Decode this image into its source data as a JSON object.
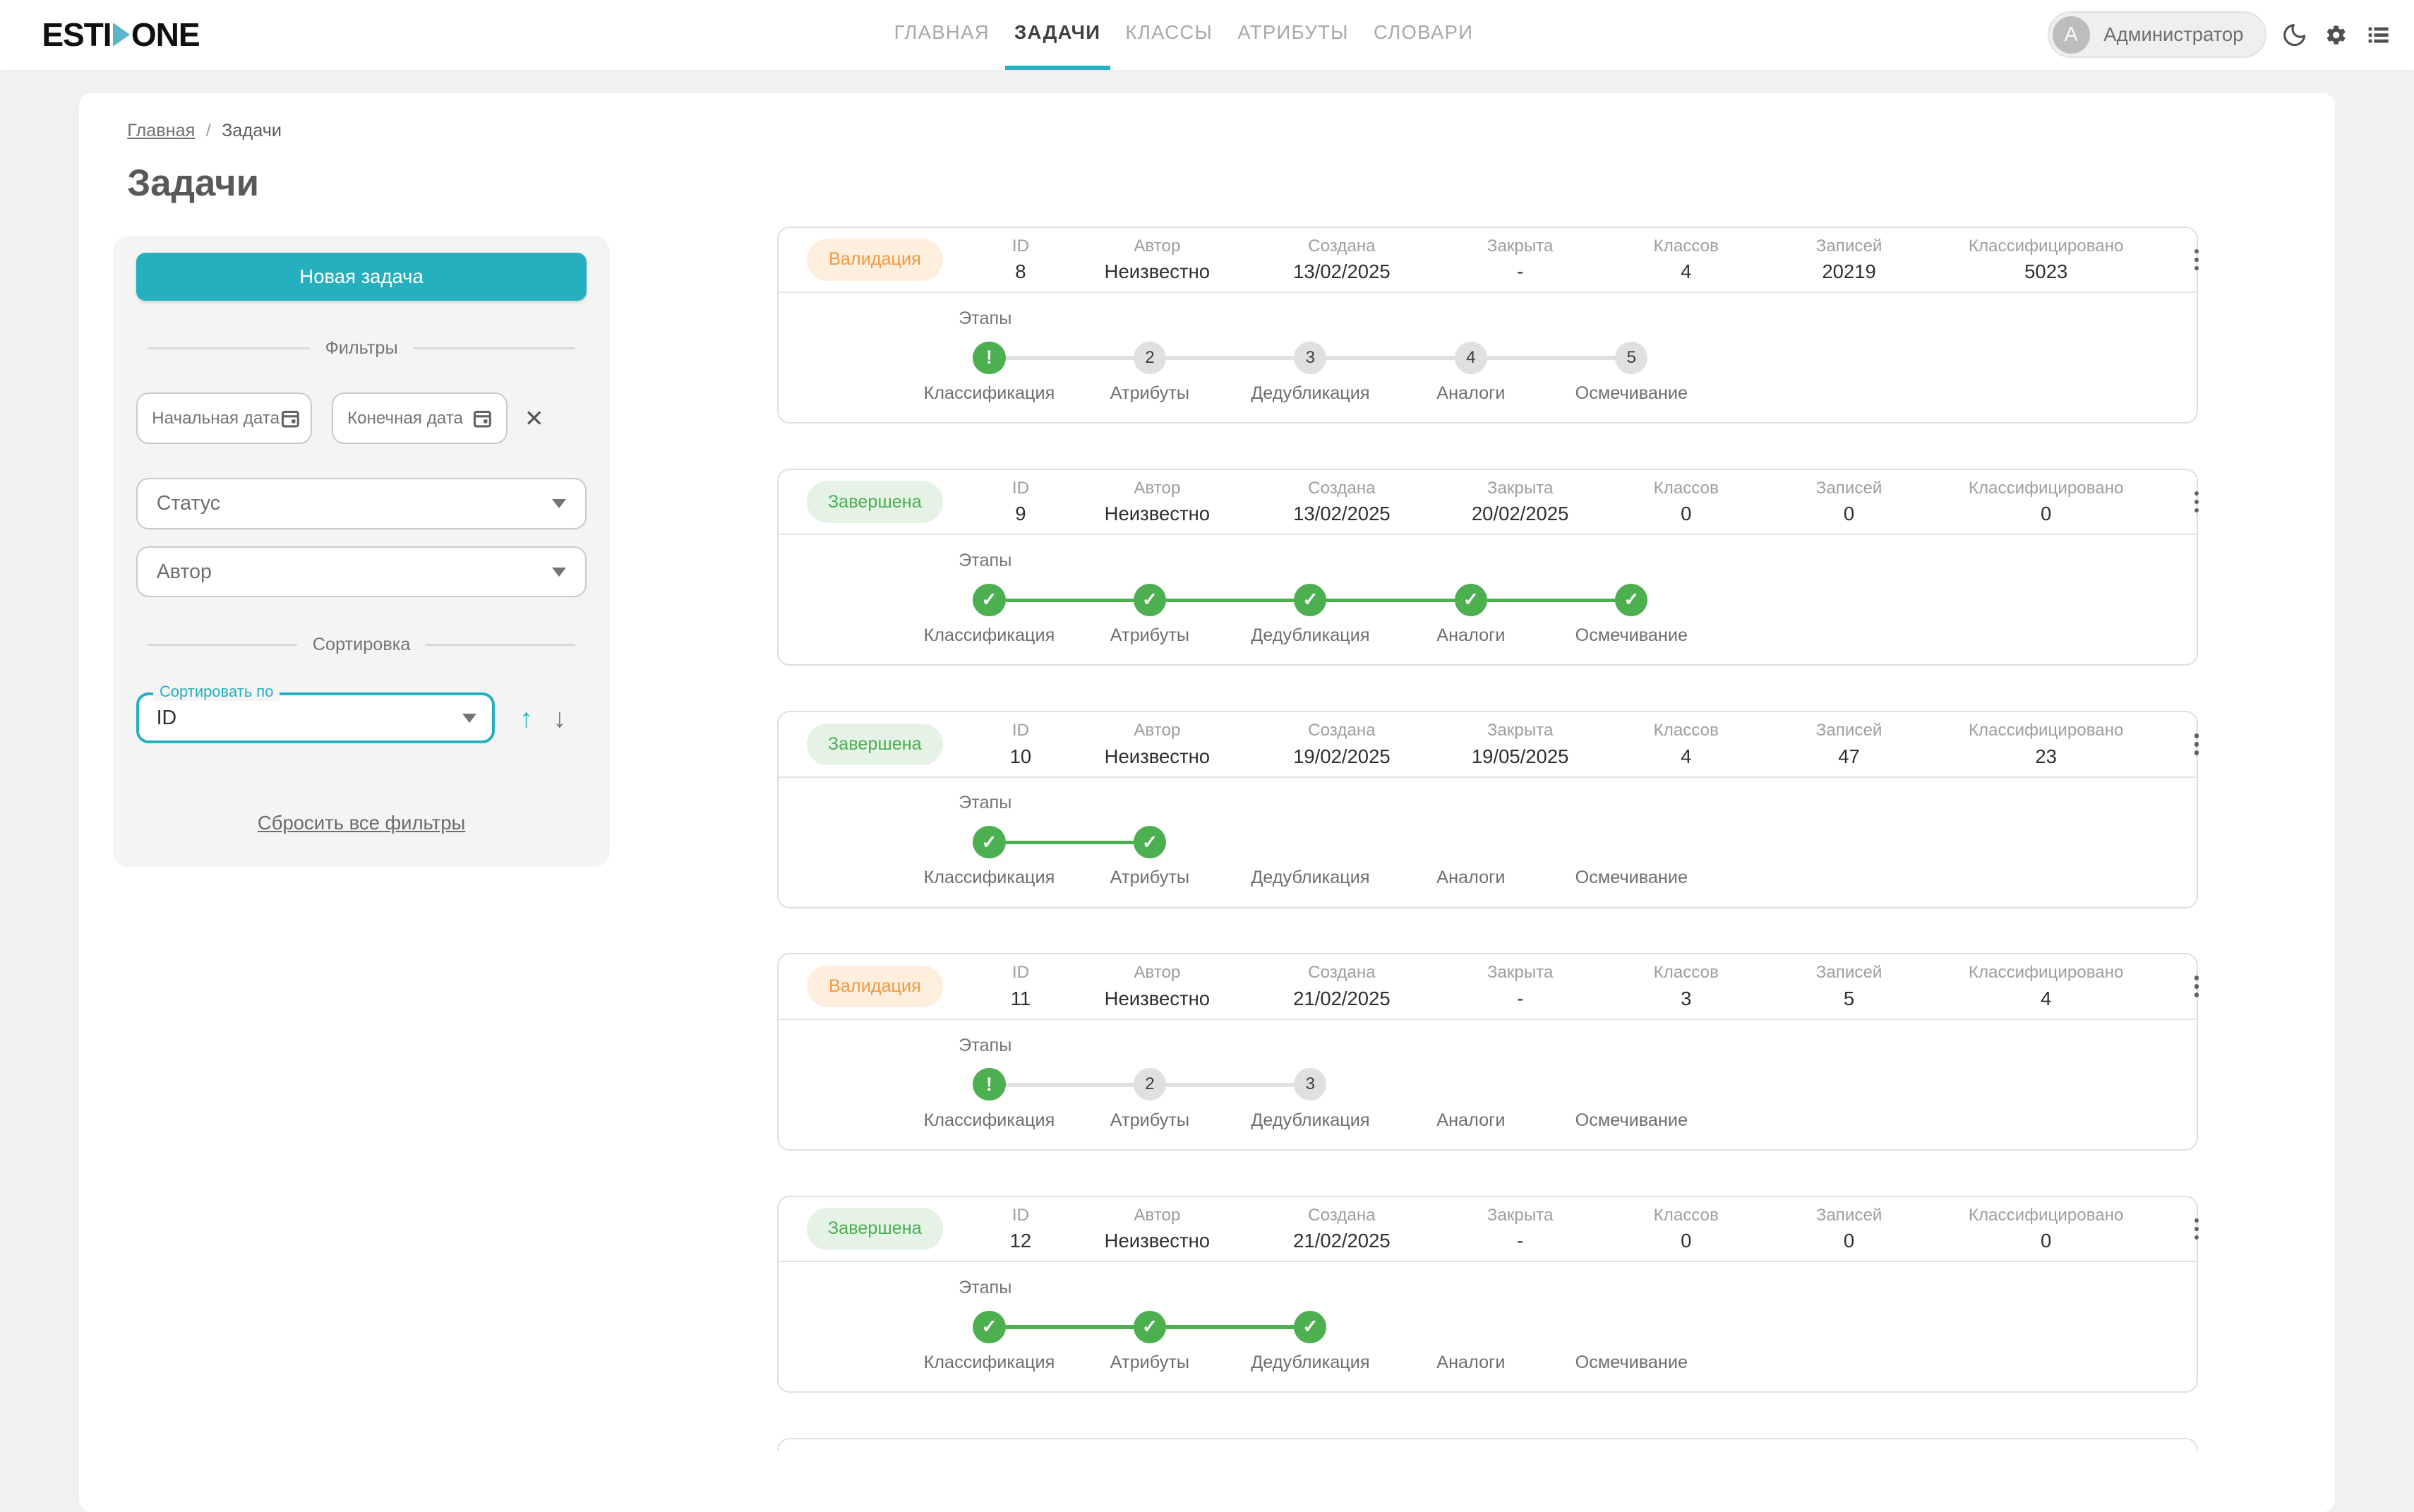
{
  "header": {
    "logo": {
      "part1": "ESTI",
      "part2": "ONE"
    },
    "nav": [
      {
        "name": "glavnaya",
        "label": "ГЛАВНАЯ",
        "active": false
      },
      {
        "name": "zadachi",
        "label": "ЗАДАЧИ",
        "active": true
      },
      {
        "name": "klassy",
        "label": "КЛАССЫ",
        "active": false
      },
      {
        "name": "atributy",
        "label": "АТРИБУТЫ",
        "active": false
      },
      {
        "name": "slovari",
        "label": "СЛОВАРИ",
        "active": false
      }
    ],
    "user": {
      "initial": "A",
      "name": "Администратор"
    },
    "icons": [
      "moon-icon",
      "settings-icon",
      "list-icon"
    ]
  },
  "breadcrumb": {
    "items": [
      {
        "label": "Главная"
      },
      {
        "label": "Задачи"
      }
    ],
    "separator": "/"
  },
  "page_title": "Задачи",
  "sidebar": {
    "new_task_button": "Новая задача",
    "filters_divider": "Фильтры",
    "start_date_placeholder": "Начальная дата",
    "end_date_placeholder": "Конечная дата",
    "clear_dates_icon": "✕",
    "status_placeholder": "Статус",
    "author_placeholder": "Автор",
    "sort_divider": "Сортировка",
    "sort_label": "Сортировать по",
    "sort_value": "ID",
    "sort_asc_icon": "↑",
    "sort_desc_icon": "↓",
    "reset_link": "Сбросить все фильтры"
  },
  "tasks": {
    "columns": [
      "ID",
      "Автор",
      "Создана",
      "Закрыта",
      "Классов",
      "Записей",
      "Классифицировано"
    ],
    "stages_label": "Этапы",
    "stage_names": [
      "Классификация",
      "Атрибуты",
      "Дедубликация",
      "Аналоги",
      "Осмечивание"
    ],
    "glyphs": {
      "done": "✓",
      "current": "!"
    },
    "cards": [
      {
        "status": "Валидация",
        "status_type": "validation",
        "values": [
          "8",
          "Неизвестно",
          "13/02/2025",
          "-",
          "4",
          "20219",
          "5023"
        ],
        "steps": [
          {
            "state": "current"
          },
          {
            "state": "pending",
            "num": "2"
          },
          {
            "state": "pending",
            "num": "3"
          },
          {
            "state": "pending",
            "num": "4"
          },
          {
            "state": "pending",
            "num": "5"
          }
        ]
      },
      {
        "status": "Завершена",
        "status_type": "done",
        "values": [
          "9",
          "Неизвестно",
          "13/02/2025",
          "20/02/2025",
          "0",
          "0",
          "0"
        ],
        "steps": [
          {
            "state": "done"
          },
          {
            "state": "done"
          },
          {
            "state": "done"
          },
          {
            "state": "done"
          },
          {
            "state": "done"
          }
        ]
      },
      {
        "status": "Завершена",
        "status_type": "done",
        "values": [
          "10",
          "Неизвестно",
          "19/02/2025",
          "19/05/2025",
          "4",
          "47",
          "23"
        ],
        "steps": [
          {
            "state": "done"
          },
          {
            "state": "done"
          },
          {
            "state": "absent"
          },
          {
            "state": "absent"
          },
          {
            "state": "absent"
          }
        ]
      },
      {
        "status": "Валидация",
        "status_type": "validation",
        "values": [
          "11",
          "Неизвестно",
          "21/02/2025",
          "-",
          "3",
          "5",
          "4"
        ],
        "steps": [
          {
            "state": "current"
          },
          {
            "state": "pending",
            "num": "2"
          },
          {
            "state": "pending",
            "num": "3"
          },
          {
            "state": "absent"
          },
          {
            "state": "absent"
          }
        ]
      },
      {
        "status": "Завершена",
        "status_type": "done",
        "values": [
          "12",
          "Неизвестно",
          "21/02/2025",
          "-",
          "0",
          "0",
          "0"
        ],
        "steps": [
          {
            "state": "done"
          },
          {
            "state": "done"
          },
          {
            "state": "done"
          },
          {
            "state": "absent"
          },
          {
            "state": "absent"
          }
        ]
      }
    ]
  },
  "colors": {
    "accent_teal": "#26b0bf",
    "success_green": "#4caf50",
    "warning_orange": "#ef9a3f"
  }
}
